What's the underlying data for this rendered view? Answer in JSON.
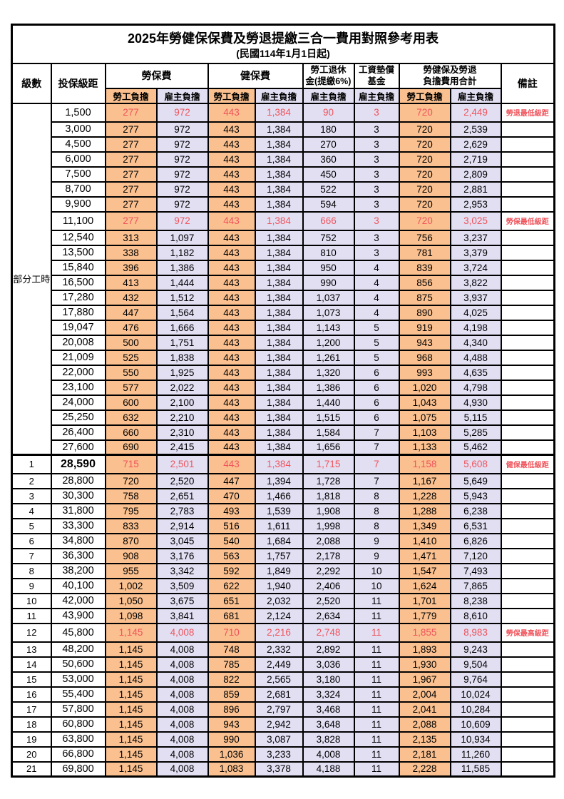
{
  "title": "2025年勞健保保費及勞退提繳三合一費用對照參考用表",
  "subtitle": "(民國114年1月1日起)",
  "header": {
    "level": "級數",
    "bracket": "投保級距",
    "labor_insurance": "勞保費",
    "health_insurance": "健保費",
    "pension_line1": "勞工退休",
    "pension_line2": "金(提繳6%)",
    "wage_fund_line1": "工資墊償",
    "wage_fund_line2": "基金",
    "total_line1": "勞健保及勞退",
    "total_line2": "負擔費用合計",
    "remark": "備註",
    "worker_burden": "勞工負擔",
    "employer_burden": "雇主負擔"
  },
  "part_time_label": "部分工時",
  "part_time_rowspan": 23,
  "colors": {
    "worker_column_bg": "#FAC08F",
    "employer_column_bg": "#E2DFF3",
    "highlight_text": "#F0545C",
    "border": "#000000"
  },
  "rows": [
    {
      "level": "",
      "bracket": "1,500",
      "li_w": "277",
      "li_e": "972",
      "hi_w": "443",
      "hi_e": "1,384",
      "pension": "90",
      "fund": "3",
      "tot_w": "720",
      "tot_e": "2,449",
      "remark": "勞退最低級距",
      "highlight": true
    },
    {
      "level": "",
      "bracket": "3,000",
      "li_w": "277",
      "li_e": "972",
      "hi_w": "443",
      "hi_e": "1,384",
      "pension": "180",
      "fund": "3",
      "tot_w": "720",
      "tot_e": "2,539",
      "remark": ""
    },
    {
      "level": "",
      "bracket": "4,500",
      "li_w": "277",
      "li_e": "972",
      "hi_w": "443",
      "hi_e": "1,384",
      "pension": "270",
      "fund": "3",
      "tot_w": "720",
      "tot_e": "2,629",
      "remark": ""
    },
    {
      "level": "",
      "bracket": "6,000",
      "li_w": "277",
      "li_e": "972",
      "hi_w": "443",
      "hi_e": "1,384",
      "pension": "360",
      "fund": "3",
      "tot_w": "720",
      "tot_e": "2,719",
      "remark": ""
    },
    {
      "level": "",
      "bracket": "7,500",
      "li_w": "277",
      "li_e": "972",
      "hi_w": "443",
      "hi_e": "1,384",
      "pension": "450",
      "fund": "3",
      "tot_w": "720",
      "tot_e": "2,809",
      "remark": ""
    },
    {
      "level": "",
      "bracket": "8,700",
      "li_w": "277",
      "li_e": "972",
      "hi_w": "443",
      "hi_e": "1,384",
      "pension": "522",
      "fund": "3",
      "tot_w": "720",
      "tot_e": "2,881",
      "remark": ""
    },
    {
      "level": "",
      "bracket": "9,900",
      "li_w": "277",
      "li_e": "972",
      "hi_w": "443",
      "hi_e": "1,384",
      "pension": "594",
      "fund": "3",
      "tot_w": "720",
      "tot_e": "2,953",
      "remark": ""
    },
    {
      "level": "",
      "bracket": "11,100",
      "li_w": "277",
      "li_e": "972",
      "hi_w": "443",
      "hi_e": "1,384",
      "pension": "666",
      "fund": "3",
      "tot_w": "720",
      "tot_e": "3,025",
      "remark": "勞保最低級距",
      "highlight": true
    },
    {
      "level": "",
      "bracket": "12,540",
      "li_w": "313",
      "li_e": "1,097",
      "hi_w": "443",
      "hi_e": "1,384",
      "pension": "752",
      "fund": "3",
      "tot_w": "756",
      "tot_e": "3,237",
      "remark": ""
    },
    {
      "level": "",
      "bracket": "13,500",
      "li_w": "338",
      "li_e": "1,182",
      "hi_w": "443",
      "hi_e": "1,384",
      "pension": "810",
      "fund": "3",
      "tot_w": "781",
      "tot_e": "3,379",
      "remark": ""
    },
    {
      "level": "",
      "bracket": "15,840",
      "li_w": "396",
      "li_e": "1,386",
      "hi_w": "443",
      "hi_e": "1,384",
      "pension": "950",
      "fund": "4",
      "tot_w": "839",
      "tot_e": "3,724",
      "remark": ""
    },
    {
      "level": "",
      "bracket": "16,500",
      "li_w": "413",
      "li_e": "1,444",
      "hi_w": "443",
      "hi_e": "1,384",
      "pension": "990",
      "fund": "4",
      "tot_w": "856",
      "tot_e": "3,822",
      "remark": ""
    },
    {
      "level": "",
      "bracket": "17,280",
      "li_w": "432",
      "li_e": "1,512",
      "hi_w": "443",
      "hi_e": "1,384",
      "pension": "1,037",
      "fund": "4",
      "tot_w": "875",
      "tot_e": "3,937",
      "remark": ""
    },
    {
      "level": "",
      "bracket": "17,880",
      "li_w": "447",
      "li_e": "1,564",
      "hi_w": "443",
      "hi_e": "1,384",
      "pension": "1,073",
      "fund": "4",
      "tot_w": "890",
      "tot_e": "4,025",
      "remark": ""
    },
    {
      "level": "",
      "bracket": "19,047",
      "li_w": "476",
      "li_e": "1,666",
      "hi_w": "443",
      "hi_e": "1,384",
      "pension": "1,143",
      "fund": "5",
      "tot_w": "919",
      "tot_e": "4,198",
      "remark": ""
    },
    {
      "level": "",
      "bracket": "20,008",
      "li_w": "500",
      "li_e": "1,751",
      "hi_w": "443",
      "hi_e": "1,384",
      "pension": "1,200",
      "fund": "5",
      "tot_w": "943",
      "tot_e": "4,340",
      "remark": ""
    },
    {
      "level": "",
      "bracket": "21,009",
      "li_w": "525",
      "li_e": "1,838",
      "hi_w": "443",
      "hi_e": "1,384",
      "pension": "1,261",
      "fund": "5",
      "tot_w": "968",
      "tot_e": "4,488",
      "remark": ""
    },
    {
      "level": "",
      "bracket": "22,000",
      "li_w": "550",
      "li_e": "1,925",
      "hi_w": "443",
      "hi_e": "1,384",
      "pension": "1,320",
      "fund": "6",
      "tot_w": "993",
      "tot_e": "4,635",
      "remark": ""
    },
    {
      "level": "",
      "bracket": "23,100",
      "li_w": "577",
      "li_e": "2,022",
      "hi_w": "443",
      "hi_e": "1,384",
      "pension": "1,386",
      "fund": "6",
      "tot_w": "1,020",
      "tot_e": "4,798",
      "remark": ""
    },
    {
      "level": "",
      "bracket": "24,000",
      "li_w": "600",
      "li_e": "2,100",
      "hi_w": "443",
      "hi_e": "1,384",
      "pension": "1,440",
      "fund": "6",
      "tot_w": "1,043",
      "tot_e": "4,930",
      "remark": ""
    },
    {
      "level": "",
      "bracket": "25,250",
      "li_w": "632",
      "li_e": "2,210",
      "hi_w": "443",
      "hi_e": "1,384",
      "pension": "1,515",
      "fund": "6",
      "tot_w": "1,075",
      "tot_e": "5,115",
      "remark": ""
    },
    {
      "level": "",
      "bracket": "26,400",
      "li_w": "660",
      "li_e": "2,310",
      "hi_w": "443",
      "hi_e": "1,384",
      "pension": "1,584",
      "fund": "7",
      "tot_w": "1,103",
      "tot_e": "5,285",
      "remark": ""
    },
    {
      "level": "",
      "bracket": "27,600",
      "li_w": "690",
      "li_e": "2,415",
      "hi_w": "443",
      "hi_e": "1,384",
      "pension": "1,656",
      "fund": "7",
      "tot_w": "1,133",
      "tot_e": "5,462",
      "remark": ""
    },
    {
      "level": "1",
      "bracket": "28,590",
      "li_w": "715",
      "li_e": "2,501",
      "hi_w": "443",
      "hi_e": "1,384",
      "pension": "1,715",
      "fund": "7",
      "tot_w": "1,158",
      "tot_e": "5,608",
      "remark": "健保最低級距",
      "highlight": true
    },
    {
      "level": "2",
      "bracket": "28,800",
      "li_w": "720",
      "li_e": "2,520",
      "hi_w": "447",
      "hi_e": "1,394",
      "pension": "1,728",
      "fund": "7",
      "tot_w": "1,167",
      "tot_e": "5,649",
      "remark": ""
    },
    {
      "level": "3",
      "bracket": "30,300",
      "li_w": "758",
      "li_e": "2,651",
      "hi_w": "470",
      "hi_e": "1,466",
      "pension": "1,818",
      "fund": "8",
      "tot_w": "1,228",
      "tot_e": "5,943",
      "remark": ""
    },
    {
      "level": "4",
      "bracket": "31,800",
      "li_w": "795",
      "li_e": "2,783",
      "hi_w": "493",
      "hi_e": "1,539",
      "pension": "1,908",
      "fund": "8",
      "tot_w": "1,288",
      "tot_e": "6,238",
      "remark": ""
    },
    {
      "level": "5",
      "bracket": "33,300",
      "li_w": "833",
      "li_e": "2,914",
      "hi_w": "516",
      "hi_e": "1,611",
      "pension": "1,998",
      "fund": "8",
      "tot_w": "1,349",
      "tot_e": "6,531",
      "remark": ""
    },
    {
      "level": "6",
      "bracket": "34,800",
      "li_w": "870",
      "li_e": "3,045",
      "hi_w": "540",
      "hi_e": "1,684",
      "pension": "2,088",
      "fund": "9",
      "tot_w": "1,410",
      "tot_e": "6,826",
      "remark": ""
    },
    {
      "level": "7",
      "bracket": "36,300",
      "li_w": "908",
      "li_e": "3,176",
      "hi_w": "563",
      "hi_e": "1,757",
      "pension": "2,178",
      "fund": "9",
      "tot_w": "1,471",
      "tot_e": "7,120",
      "remark": ""
    },
    {
      "level": "8",
      "bracket": "38,200",
      "li_w": "955",
      "li_e": "3,342",
      "hi_w": "592",
      "hi_e": "1,849",
      "pension": "2,292",
      "fund": "10",
      "tot_w": "1,547",
      "tot_e": "7,493",
      "remark": ""
    },
    {
      "level": "9",
      "bracket": "40,100",
      "li_w": "1,002",
      "li_e": "3,509",
      "hi_w": "622",
      "hi_e": "1,940",
      "pension": "2,406",
      "fund": "10",
      "tot_w": "1,624",
      "tot_e": "7,865",
      "remark": ""
    },
    {
      "level": "10",
      "bracket": "42,000",
      "li_w": "1,050",
      "li_e": "3,675",
      "hi_w": "651",
      "hi_e": "2,032",
      "pension": "2,520",
      "fund": "11",
      "tot_w": "1,701",
      "tot_e": "8,238",
      "remark": ""
    },
    {
      "level": "11",
      "bracket": "43,900",
      "li_w": "1,098",
      "li_e": "3,841",
      "hi_w": "681",
      "hi_e": "2,124",
      "pension": "2,634",
      "fund": "11",
      "tot_w": "1,779",
      "tot_e": "8,610",
      "remark": ""
    },
    {
      "level": "12",
      "bracket": "45,800",
      "li_w": "1,145",
      "li_e": "4,008",
      "hi_w": "710",
      "hi_e": "2,216",
      "pension": "2,748",
      "fund": "11",
      "tot_w": "1,855",
      "tot_e": "8,983",
      "remark": "勞保最高級距",
      "highlight": true
    },
    {
      "level": "13",
      "bracket": "48,200",
      "li_w": "1,145",
      "li_e": "4,008",
      "hi_w": "748",
      "hi_e": "2,332",
      "pension": "2,892",
      "fund": "11",
      "tot_w": "1,893",
      "tot_e": "9,243",
      "remark": ""
    },
    {
      "level": "14",
      "bracket": "50,600",
      "li_w": "1,145",
      "li_e": "4,008",
      "hi_w": "785",
      "hi_e": "2,449",
      "pension": "3,036",
      "fund": "11",
      "tot_w": "1,930",
      "tot_e": "9,504",
      "remark": ""
    },
    {
      "level": "15",
      "bracket": "53,000",
      "li_w": "1,145",
      "li_e": "4,008",
      "hi_w": "822",
      "hi_e": "2,565",
      "pension": "3,180",
      "fund": "11",
      "tot_w": "1,967",
      "tot_e": "9,764",
      "remark": ""
    },
    {
      "level": "16",
      "bracket": "55,400",
      "li_w": "1,145",
      "li_e": "4,008",
      "hi_w": "859",
      "hi_e": "2,681",
      "pension": "3,324",
      "fund": "11",
      "tot_w": "2,004",
      "tot_e": "10,024",
      "remark": ""
    },
    {
      "level": "17",
      "bracket": "57,800",
      "li_w": "1,145",
      "li_e": "4,008",
      "hi_w": "896",
      "hi_e": "2,797",
      "pension": "3,468",
      "fund": "11",
      "tot_w": "2,041",
      "tot_e": "10,284",
      "remark": ""
    },
    {
      "level": "18",
      "bracket": "60,800",
      "li_w": "1,145",
      "li_e": "4,008",
      "hi_w": "943",
      "hi_e": "2,942",
      "pension": "3,648",
      "fund": "11",
      "tot_w": "2,088",
      "tot_e": "10,609",
      "remark": ""
    },
    {
      "level": "19",
      "bracket": "63,800",
      "li_w": "1,145",
      "li_e": "4,008",
      "hi_w": "990",
      "hi_e": "3,087",
      "pension": "3,828",
      "fund": "11",
      "tot_w": "2,135",
      "tot_e": "10,934",
      "remark": ""
    },
    {
      "level": "20",
      "bracket": "66,800",
      "li_w": "1,145",
      "li_e": "4,008",
      "hi_w": "1,036",
      "hi_e": "3,233",
      "pension": "4,008",
      "fund": "11",
      "tot_w": "2,181",
      "tot_e": "11,260",
      "remark": ""
    },
    {
      "level": "21",
      "bracket": "69,800",
      "li_w": "1,145",
      "li_e": "4,008",
      "hi_w": "1,083",
      "hi_e": "3,378",
      "pension": "4,188",
      "fund": "11",
      "tot_w": "2,228",
      "tot_e": "11,585",
      "remark": ""
    }
  ]
}
